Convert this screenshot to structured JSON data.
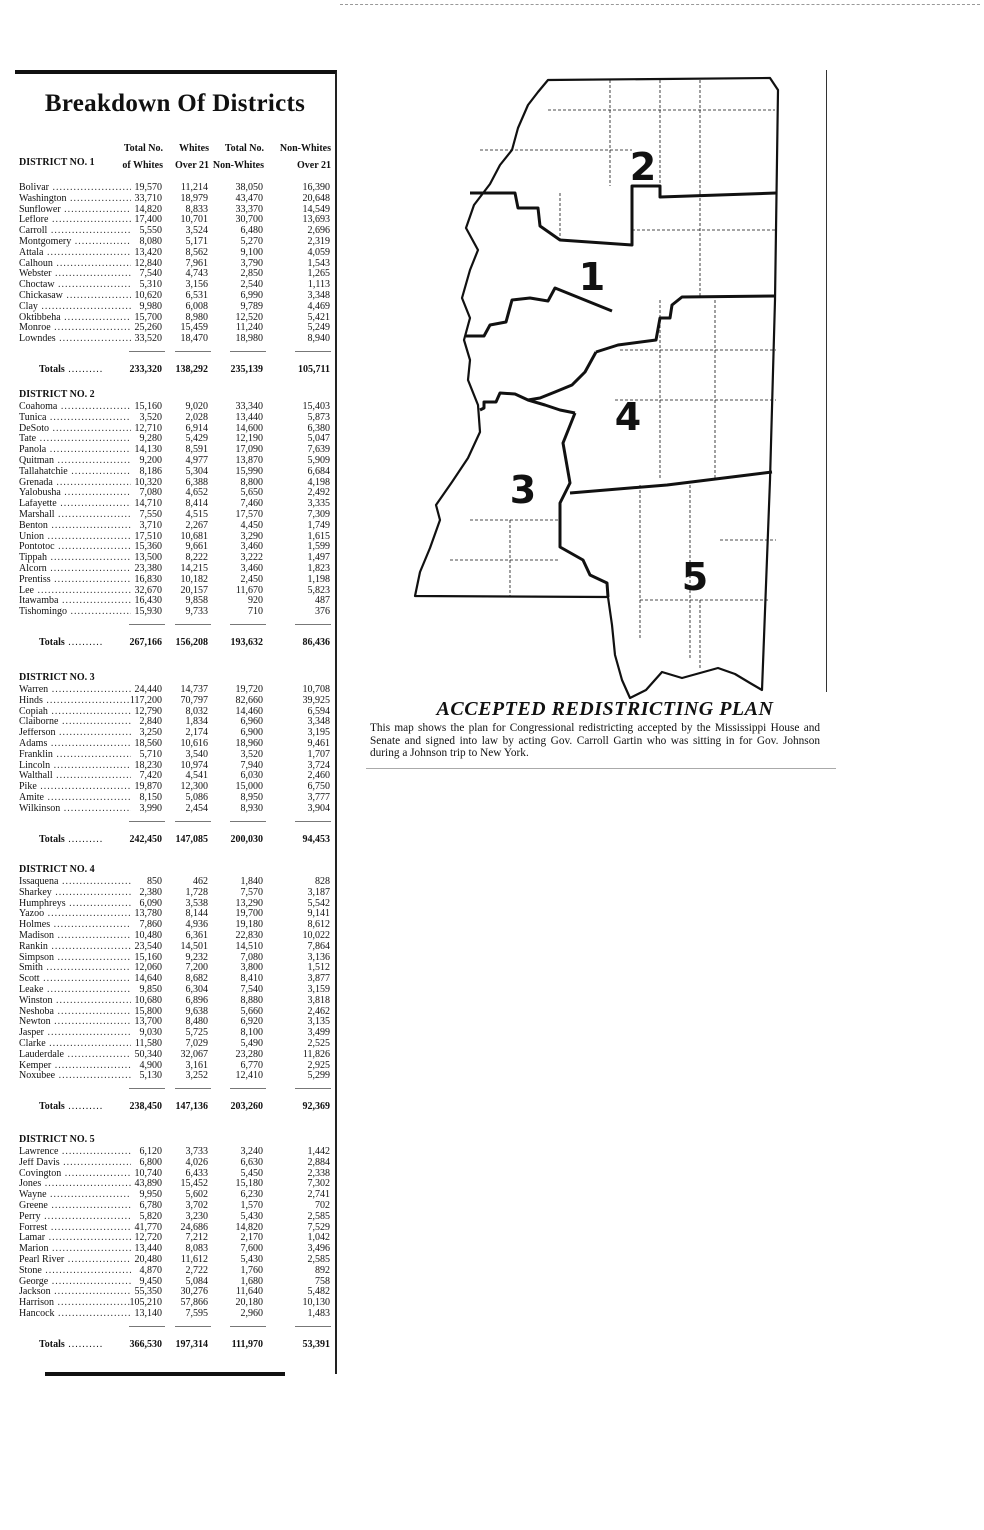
{
  "title": "Breakdown Of Districts",
  "columns": {
    "col1": [
      "Total No.",
      "of Whites"
    ],
    "col2": [
      "Whites",
      "Over 21"
    ],
    "col3": [
      "Total No.",
      "Non-Whites"
    ],
    "col4": [
      "Non-Whites",
      "Over 21"
    ]
  },
  "totals_label": "Totals",
  "districts": [
    {
      "label": "DISTRICT NO. 1",
      "rows": [
        [
          "Bolivar",
          "19,570",
          "11,214",
          "38,050",
          "16,390"
        ],
        [
          "Washington",
          "33,710",
          "18,979",
          "43,470",
          "20,648"
        ],
        [
          "Sunflower",
          "14,820",
          "8,833",
          "33,370",
          "14,549"
        ],
        [
          "Leflore",
          "17,400",
          "10,701",
          "30,700",
          "13,693"
        ],
        [
          "Carroll",
          "5,550",
          "3,524",
          "6,480",
          "2,696"
        ],
        [
          "Montgomery",
          "8,080",
          "5,171",
          "5,270",
          "2,319"
        ],
        [
          "Attala",
          "13,420",
          "8,562",
          "9,100",
          "4,059"
        ],
        [
          "Calhoun",
          "12,840",
          "7,961",
          "3,790",
          "1,543"
        ],
        [
          "Webster",
          "7,540",
          "4,743",
          "2,850",
          "1,265"
        ],
        [
          "Choctaw",
          "5,310",
          "3,156",
          "2,540",
          "1,113"
        ],
        [
          "Chickasaw",
          "10,620",
          "6,531",
          "6,990",
          "3,348"
        ],
        [
          "Clay",
          "9,980",
          "6,008",
          "9,789",
          "4,469"
        ],
        [
          "Oktibbeha",
          "15,700",
          "8,980",
          "12,520",
          "5,421"
        ],
        [
          "Monroe",
          "25,260",
          "15,459",
          "11,240",
          "5,249"
        ],
        [
          "Lowndes",
          "33,520",
          "18,470",
          "18,980",
          "8,940"
        ]
      ],
      "totals": [
        "233,320",
        "138,292",
        "235,139",
        "105,711"
      ]
    },
    {
      "label": "DISTRICT NO. 2",
      "rows": [
        [
          "Coahoma",
          "15,160",
          "9,020",
          "33,340",
          "15,403"
        ],
        [
          "Tunica",
          "3,520",
          "2,028",
          "13,440",
          "5,873"
        ],
        [
          "DeSoto",
          "12,710",
          "6,914",
          "14,600",
          "6,380"
        ],
        [
          "Tate",
          "9,280",
          "5,429",
          "12,190",
          "5,047"
        ],
        [
          "Panola",
          "14,130",
          "8,591",
          "17,090",
          "7,639"
        ],
        [
          "Quitman",
          "9,200",
          "4,977",
          "13,870",
          "5,909"
        ],
        [
          "Tallahatchie",
          "8,186",
          "5,304",
          "15,990",
          "6,684"
        ],
        [
          "Grenada",
          "10,320",
          "6,388",
          "8,800",
          "4,198"
        ],
        [
          "Yalobusha",
          "7,080",
          "4,652",
          "5,650",
          "2,492"
        ],
        [
          "Lafayette",
          "14,710",
          "8,414",
          "7,460",
          "3,335"
        ],
        [
          "Marshall",
          "7,550",
          "4,515",
          "17,570",
          "7,309"
        ],
        [
          "Benton",
          "3,710",
          "2,267",
          "4,450",
          "1,749"
        ],
        [
          "Union",
          "17,510",
          "10,681",
          "3,290",
          "1,615"
        ],
        [
          "Pontotoc",
          "15,360",
          "9,661",
          "3,460",
          "1,599"
        ],
        [
          "Tippah",
          "13,500",
          "8,222",
          "3,222",
          "1,497"
        ],
        [
          "Alcorn",
          "23,380",
          "14,215",
          "3,460",
          "1,823"
        ],
        [
          "Prentiss",
          "16,830",
          "10,182",
          "2,450",
          "1,198"
        ],
        [
          "Lee",
          "32,670",
          "20,157",
          "11,670",
          "5,823"
        ],
        [
          "Itawamba",
          "16,430",
          "9,858",
          "920",
          "487"
        ],
        [
          "Tishomingo",
          "15,930",
          "9,733",
          "710",
          "376"
        ]
      ],
      "totals": [
        "267,166",
        "156,208",
        "193,632",
        "86,436"
      ]
    },
    {
      "label": "DISTRICT NO. 3",
      "rows": [
        [
          "Warren",
          "24,440",
          "14,737",
          "19,720",
          "10,708"
        ],
        [
          "Hinds",
          "117,200",
          "70,797",
          "82,660",
          "39,925"
        ],
        [
          "Copiah",
          "12,790",
          "8,032",
          "14,460",
          "6,594"
        ],
        [
          "Claiborne",
          "2,840",
          "1,834",
          "6,960",
          "3,348"
        ],
        [
          "Jefferson",
          "3,250",
          "2,174",
          "6,900",
          "3,195"
        ],
        [
          "Adams",
          "18,560",
          "10,616",
          "18,960",
          "9,461"
        ],
        [
          "Franklin",
          "5,710",
          "3,540",
          "3,520",
          "1,707"
        ],
        [
          "Lincoln",
          "18,230",
          "10,974",
          "7,940",
          "3,724"
        ],
        [
          "Walthall",
          "7,420",
          "4,541",
          "6,030",
          "2,460"
        ],
        [
          "Pike",
          "19,870",
          "12,300",
          "15,000",
          "6,750"
        ],
        [
          "Amite",
          "8,150",
          "5,086",
          "8,950",
          "3,777"
        ],
        [
          "Wilkinson",
          "3,990",
          "2,454",
          "8,930",
          "3,904"
        ]
      ],
      "totals": [
        "242,450",
        "147,085",
        "200,030",
        "94,453"
      ]
    },
    {
      "label": "DISTRICT NO. 4",
      "rows": [
        [
          "Issaquena",
          "850",
          "462",
          "1,840",
          "828"
        ],
        [
          "Sharkey",
          "2,380",
          "1,728",
          "7,570",
          "3,187"
        ],
        [
          "Humphreys",
          "6,090",
          "3,538",
          "13,290",
          "5,542"
        ],
        [
          "Yazoo",
          "13,780",
          "8,144",
          "19,700",
          "9,141"
        ],
        [
          "Holmes",
          "7,860",
          "4,936",
          "19,180",
          "8,612"
        ],
        [
          "Madison",
          "10,480",
          "6,361",
          "22,830",
          "10,022"
        ],
        [
          "Rankin",
          "23,540",
          "14,501",
          "14,510",
          "7,864"
        ],
        [
          "Simpson",
          "15,160",
          "9,232",
          "7,080",
          "3,136"
        ],
        [
          "Smith",
          "12,060",
          "7,200",
          "3,800",
          "1,512"
        ],
        [
          "Scott",
          "14,640",
          "8,682",
          "8,410",
          "3,877"
        ],
        [
          "Leake",
          "9,850",
          "6,304",
          "7,540",
          "3,159"
        ],
        [
          "Winston",
          "10,680",
          "6,896",
          "8,880",
          "3,818"
        ],
        [
          "Neshoba",
          "15,800",
          "9,638",
          "5,660",
          "2,462"
        ],
        [
          "Newton",
          "13,700",
          "8,480",
          "6,920",
          "3,135"
        ],
        [
          "Jasper",
          "9,030",
          "5,725",
          "8,100",
          "3,499"
        ],
        [
          "Clarke",
          "11,580",
          "7,029",
          "5,490",
          "2,525"
        ],
        [
          "Lauderdale",
          "50,340",
          "32,067",
          "23,280",
          "11,826"
        ],
        [
          "Kemper",
          "4,900",
          "3,161",
          "6,770",
          "2,925"
        ],
        [
          "Noxubee",
          "5,130",
          "3,252",
          "12,410",
          "5,299"
        ]
      ],
      "totals": [
        "238,450",
        "147,136",
        "203,260",
        "92,369"
      ]
    },
    {
      "label": "DISTRICT NO. 5",
      "rows": [
        [
          "Lawrence",
          "6,120",
          "3,733",
          "3,240",
          "1,442"
        ],
        [
          "Jeff Davis",
          "6,800",
          "4,026",
          "6,630",
          "2,884"
        ],
        [
          "Covington",
          "10,740",
          "6,433",
          "5,450",
          "2,338"
        ],
        [
          "Jones",
          "43,890",
          "15,452",
          "15,180",
          "7,302"
        ],
        [
          "Wayne",
          "9,950",
          "5,602",
          "6,230",
          "2,741"
        ],
        [
          "Greene",
          "6,780",
          "3,702",
          "1,570",
          "702"
        ],
        [
          "Perry",
          "5,820",
          "3,230",
          "5,430",
          "2,585"
        ],
        [
          "Forrest",
          "41,770",
          "24,686",
          "14,820",
          "7,529"
        ],
        [
          "Lamar",
          "12,720",
          "7,212",
          "2,170",
          "1,042"
        ],
        [
          "Marion",
          "13,440",
          "8,083",
          "7,600",
          "3,496"
        ],
        [
          "Pearl River",
          "20,480",
          "11,612",
          "5,430",
          "2,585"
        ],
        [
          "Stone",
          "4,870",
          "2,722",
          "1,760",
          "892"
        ],
        [
          "George",
          "9,450",
          "5,084",
          "1,680",
          "758"
        ],
        [
          "Jackson",
          "55,350",
          "30,276",
          "11,640",
          "5,482"
        ],
        [
          "Harrison",
          "105,210",
          "57,866",
          "20,180",
          "10,130"
        ],
        [
          "Hancock",
          "13,140",
          "7,595",
          "2,960",
          "1,483"
        ]
      ],
      "totals": [
        "366,530",
        "197,314",
        "111,970",
        "53,391"
      ]
    }
  ],
  "map": {
    "district_numbers": [
      "1",
      "2",
      "3",
      "4",
      "5"
    ],
    "line_color": "#111111"
  },
  "caption": {
    "title": "ACCEPTED REDISTRICTING PLAN",
    "body": "This map shows the plan for Congressional redistricting accepted by the Mississippi House and Senate and signed into law by acting Gov. Carroll Gartin who was sitting in for Gov. Johnson during a Johnson trip to New York."
  }
}
